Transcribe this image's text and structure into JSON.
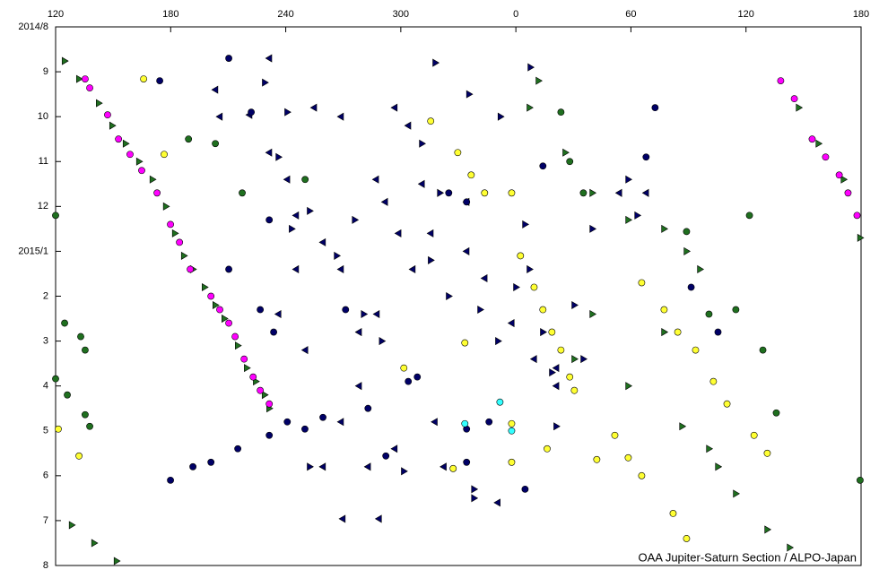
{
  "chart_data": {
    "type": "scatter",
    "credit": "OAA Jupiter-Saturn Section / ALPO-Japan",
    "xlim": [
      120,
      540
    ],
    "xticks": [
      120,
      180,
      240,
      300,
      {
        "value": 360,
        "label": "0"
      },
      {
        "value": 420,
        "label": "60"
      },
      {
        "value": 480,
        "label": "120"
      },
      {
        "value": 540,
        "label": "180"
      }
    ],
    "ylim": [
      0,
      12
    ],
    "y_reversed": true,
    "yticks": [
      {
        "value": 0,
        "label": "2014/8"
      },
      {
        "value": 1,
        "label": "9"
      },
      {
        "value": 2,
        "label": "10"
      },
      {
        "value": 3,
        "label": "11"
      },
      {
        "value": 4,
        "label": "12"
      },
      {
        "value": 5,
        "label": "2015/1"
      },
      {
        "value": 6,
        "label": "2"
      },
      {
        "value": 7,
        "label": "3"
      },
      {
        "value": 8,
        "label": "4"
      },
      {
        "value": 9,
        "label": "5"
      },
      {
        "value": 10,
        "label": "6"
      },
      {
        "value": 11,
        "label": "7"
      },
      {
        "value": 12,
        "label": "8"
      }
    ],
    "series": [
      {
        "color": "#1f6f1f",
        "marker": "triangle-right",
        "x": [
          124.7,
          132.2,
          142.5,
          149.5,
          156.5,
          163.5,
          170.5,
          177.5,
          182.2,
          186.9,
          191.6,
          197.7,
          203.3,
          208.0,
          215.0,
          219.7,
          224.4,
          229.0,
          231.4,
          128.4,
          140.1,
          151.8,
          367.1,
          371.8,
          385.8,
          399.9,
          418.6,
          437.3,
          449.0,
          456.0,
          437.3,
          418.6,
          399.9,
          390.5,
          446.7,
          460.7,
          465.4,
          474.7,
          491.1,
          502.8,
          507.5,
          517.8,
          530.9,
          539.5
        ],
        "values": [
          0.76,
          1.16,
          1.7,
          2.2,
          2.6,
          3.0,
          3.4,
          4.0,
          4.6,
          5.1,
          5.4,
          5.8,
          6.2,
          6.5,
          7.1,
          7.6,
          7.9,
          8.2,
          8.5,
          11.1,
          11.5,
          11.9,
          1.8,
          1.2,
          2.8,
          3.7,
          4.3,
          4.5,
          5.0,
          5.4,
          6.8,
          8.0,
          6.4,
          7.4,
          8.9,
          9.4,
          9.8,
          10.4,
          11.2,
          11.6,
          1.8,
          2.6,
          3.4,
          4.7
        ]
      },
      {
        "color": "#1f6f1f",
        "marker": "circle",
        "x": [
          120.0,
          124.7,
          133.1,
          135.4,
          120.0,
          126.1,
          135.4,
          137.8,
          189.3,
          203.3,
          217.3,
          250.1,
          383.5,
          388.1,
          395.2,
          449.0,
          460.7,
          474.7,
          488.8,
          495.8,
          481.8,
          539.5
        ],
        "values": [
          4.2,
          6.6,
          6.9,
          7.2,
          7.84,
          8.2,
          8.64,
          8.9,
          2.5,
          2.6,
          3.7,
          3.4,
          1.9,
          3.0,
          3.7,
          4.56,
          6.4,
          6.3,
          7.2,
          8.6,
          4.2,
          10.1
        ]
      },
      {
        "color": "#000066",
        "marker": "triangle-left",
        "x": [
          205.6,
          221.1,
          231.4,
          240.8,
          254.8,
          268.8,
          296.8,
          303.9,
          287.1,
          291.8,
          298.8,
          245.4,
          259.4,
          268.8,
          245.4,
          236.2,
          250.2,
          278.2,
          287.5,
          306.2,
          315.6,
          334.3,
          343.7,
          357.8,
          369.5,
          381.1,
          268.8,
          282.9,
          259.4,
          296.8,
          317.7,
          322.4,
          350.5,
          269.7,
          288.6,
          203.3,
          231.4,
          311.0,
          334.3,
          413.9,
          427.9,
          381.1,
          278.2
        ],
        "values": [
          2.0,
          1.96,
          2.8,
          3.4,
          1.8,
          2.0,
          1.8,
          2.2,
          3.4,
          3.9,
          4.6,
          4.2,
          4.8,
          5.4,
          5.4,
          6.4,
          7.2,
          6.8,
          6.4,
          5.4,
          4.6,
          5.0,
          5.6,
          6.6,
          7.4,
          8.0,
          8.8,
          9.8,
          9.8,
          9.4,
          8.8,
          9.8,
          10.6,
          10.96,
          10.96,
          1.4,
          0.7,
          3.5,
          3.9,
          3.7,
          3.7,
          7.6,
          8.0
        ]
      },
      {
        "color": "#000066",
        "marker": "triangle-right",
        "x": [
          229.1,
          240.8,
          236.2,
          243.1,
          252.5,
          266.6,
          276.0,
          280.7,
          290.1,
          311.0,
          320.4,
          315.6,
          325.0,
          341.4,
          350.7,
          360.1,
          364.8,
          367.1,
          374.1,
          378.8,
          390.5,
          395.2,
          318.0,
          335.6,
          352.0,
          367.6,
          338.2,
          338.2,
          301.6,
          252.5,
          381.1,
          399.9,
          418.6,
          423.3
        ],
        "values": [
          1.24,
          1.9,
          2.9,
          4.5,
          4.1,
          5.1,
          4.3,
          6.4,
          7.0,
          2.6,
          3.7,
          5.2,
          6.0,
          6.3,
          7.0,
          5.8,
          4.4,
          5.4,
          6.8,
          7.7,
          6.2,
          7.4,
          0.8,
          1.5,
          2.0,
          0.9,
          10.3,
          10.5,
          9.9,
          9.8,
          8.9,
          4.5,
          3.4,
          4.2
        ]
      },
      {
        "color": "#000066",
        "marker": "circle",
        "x": [
          210.3,
          174.3,
          222.0,
          231.4,
          210.3,
          226.7,
          233.7,
          271.2,
          308.6,
          303.9,
          240.8,
          231.4,
          215.0,
          201.0,
          191.6,
          179.9,
          250.0,
          259.4,
          282.9,
          292.2,
          334.3,
          334.3,
          346.0,
          364.8,
          374.1,
          427.9,
          432.6,
          451.4,
          465.4,
          325.0,
          334.3
        ],
        "values": [
          0.7,
          1.2,
          1.9,
          4.3,
          5.4,
          6.3,
          6.8,
          6.3,
          7.8,
          7.9,
          8.8,
          9.1,
          9.4,
          9.7,
          9.8,
          10.1,
          8.96,
          8.7,
          8.5,
          9.56,
          8.96,
          9.7,
          8.8,
          10.3,
          3.1,
          2.9,
          1.8,
          5.8,
          6.8,
          3.7,
          3.9
        ]
      },
      {
        "color": "#ff00ff",
        "marker": "circle",
        "x": [
          135.4,
          137.8,
          147.1,
          152.8,
          158.8,
          164.9,
          172.9,
          179.9,
          184.6,
          190.2,
          201.0,
          205.6,
          210.3,
          213.6,
          218.3,
          223.0,
          226.7,
          231.4,
          498.1,
          505.2,
          514.5,
          521.5,
          528.6,
          533.2,
          537.9
        ],
        "values": [
          1.16,
          1.36,
          1.96,
          2.5,
          2.84,
          3.2,
          3.7,
          4.4,
          4.8,
          5.4,
          6.0,
          6.3,
          6.6,
          6.9,
          7.4,
          7.8,
          8.1,
          8.4,
          1.2,
          1.6,
          2.5,
          2.9,
          3.3,
          3.7,
          4.2
        ]
      },
      {
        "color": "#ffff33",
        "marker": "circle",
        "x": [
          165.9,
          176.6,
          315.6,
          329.7,
          336.7,
          343.7,
          357.8,
          362.4,
          369.5,
          374.1,
          378.8,
          383.5,
          388.1,
          390.5,
          425.6,
          437.3,
          444.4,
          453.7,
          463.0,
          470.1,
          484.2,
          491.1,
          411.6,
          418.6,
          425.6,
          402.2,
          442.0,
          449.0,
          333.4,
          301.6,
          357.8,
          376.3,
          357.8,
          327.3,
          121.4,
          132.2
        ],
        "values": [
          1.16,
          2.84,
          2.1,
          2.8,
          3.3,
          3.7,
          3.7,
          5.1,
          5.8,
          6.3,
          6.8,
          7.2,
          7.8,
          8.1,
          5.7,
          6.3,
          6.8,
          7.2,
          7.9,
          8.4,
          9.1,
          9.5,
          9.1,
          9.6,
          10.0,
          9.64,
          10.84,
          11.4,
          7.04,
          7.6,
          8.84,
          9.4,
          9.7,
          9.84,
          8.96,
          9.56
        ]
      },
      {
        "color": "#33ffff",
        "marker": "circle",
        "x": [
          333.4,
          351.7,
          357.8
        ],
        "values": [
          8.84,
          8.36,
          9.0
        ]
      }
    ]
  }
}
